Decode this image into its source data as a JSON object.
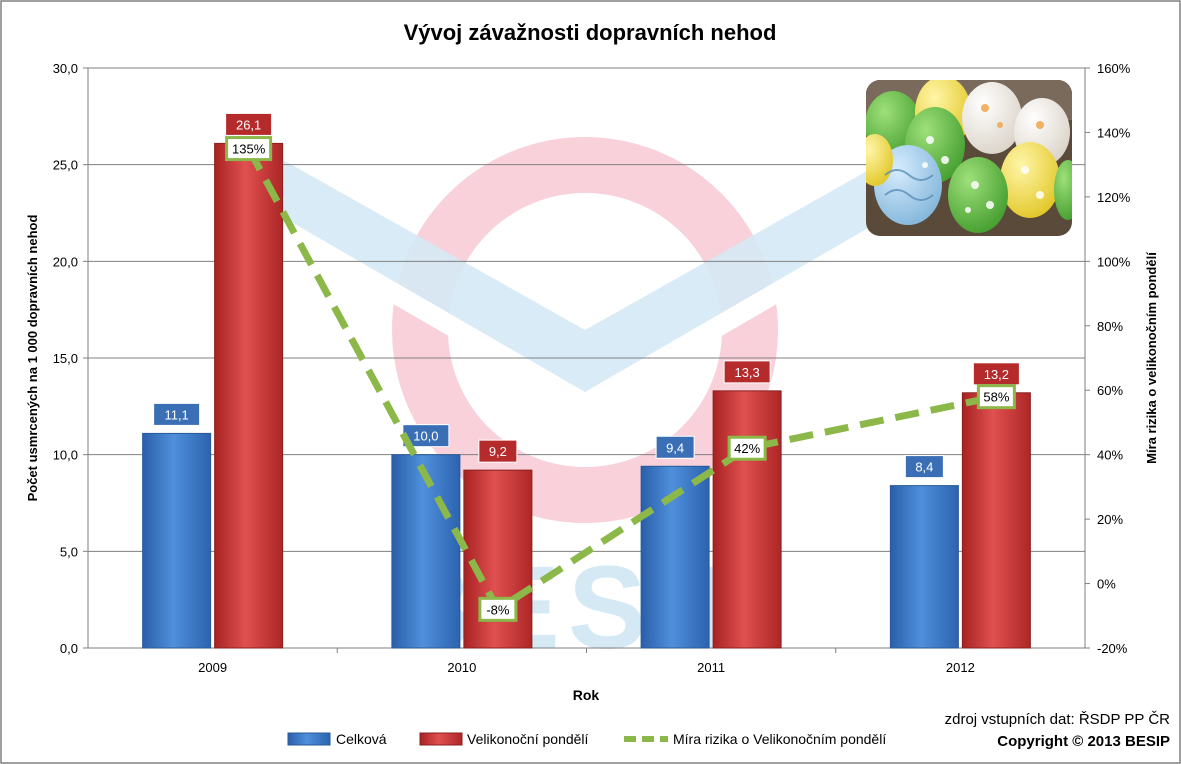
{
  "chart_data": {
    "type": "bar",
    "title": "Vývoj závažnosti dopravních nehod",
    "xlabel": "Rok",
    "ylabel": "Počet usmrcených  na 1 000 dopravních nehod",
    "y2label": "Míra rizika o velikonočním pondělí",
    "categories": [
      "2009",
      "2010",
      "2011",
      "2012"
    ],
    "ylim": [
      0,
      30
    ],
    "yticks": [
      "0,0",
      "5,0",
      "10,0",
      "15,0",
      "20,0",
      "25,0",
      "30,0"
    ],
    "y2lim": [
      -20,
      160
    ],
    "y2ticks": [
      "-20%",
      "0%",
      "20%",
      "40%",
      "60%",
      "80%",
      "100%",
      "120%",
      "140%",
      "160%"
    ],
    "grid": true,
    "legend_position": "bottom",
    "series": [
      {
        "name": "Celková",
        "type": "bar",
        "axis": "left",
        "color": "#3a78c8",
        "values": [
          11.1,
          10.0,
          9.4,
          8.4
        ],
        "labels": [
          "11,1",
          "10,0",
          "9,4",
          "8,4"
        ]
      },
      {
        "name": "Velikonoční pondělí",
        "type": "bar",
        "axis": "left",
        "color": "#cc3333",
        "values": [
          26.1,
          9.2,
          13.3,
          13.2
        ],
        "labels": [
          "26,1",
          "9,2",
          "13,3",
          "13,2"
        ]
      },
      {
        "name": "Míra rizika o Velikonočním pondělí",
        "type": "line",
        "axis": "right",
        "color": "#8cb84a",
        "style": "dashed",
        "values": [
          135,
          -8,
          42,
          58
        ],
        "labels": [
          "135%",
          "-8%",
          "42%",
          "58%"
        ]
      }
    ]
  },
  "source_note": "zdroj vstupních dat: ŘSDP PP ČR",
  "copyright": "Copyright © 2013  BESIP",
  "watermark_text": "BESIP"
}
